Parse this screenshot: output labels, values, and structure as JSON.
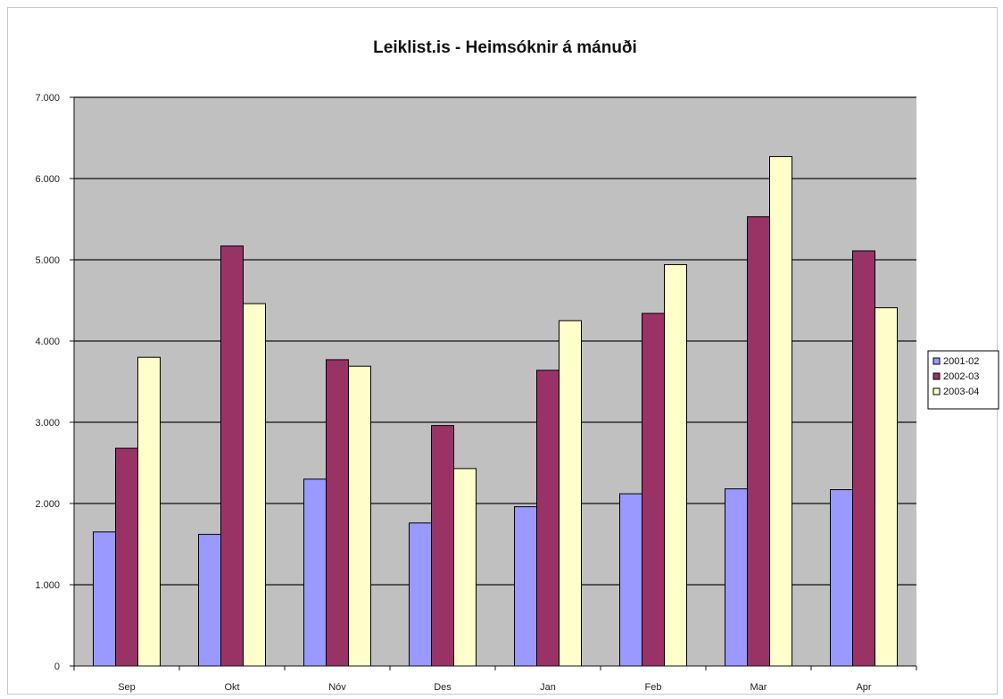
{
  "chart_data": {
    "type": "bar",
    "title": "Leiklist.is - Heimsóknir á mánuði",
    "xlabel": "",
    "ylabel": "",
    "categories": [
      "Sep",
      "Okt",
      "Nóv",
      "Des",
      "Jan",
      "Feb",
      "Mar",
      "Apr"
    ],
    "yticks": [
      "0",
      "1.000",
      "2.000",
      "3.000",
      "4.000",
      "5.000",
      "6.000",
      "7.000"
    ],
    "ylim": [
      0,
      7000
    ],
    "grid": true,
    "legend_position": "right",
    "series": [
      {
        "name": "2001-02",
        "color": "#9999ff",
        "values": [
          1650,
          1620,
          2300,
          1760,
          1960,
          2120,
          2180,
          2170
        ]
      },
      {
        "name": "2002-03",
        "color": "#993366",
        "values": [
          2680,
          5170,
          3770,
          2960,
          3640,
          4340,
          5530,
          5110
        ]
      },
      {
        "name": "2003-04",
        "color": "#ffffcc",
        "values": [
          3800,
          4460,
          3690,
          2430,
          4250,
          4940,
          6270,
          4410
        ]
      }
    ],
    "plot_background": "#c0c0c0"
  }
}
